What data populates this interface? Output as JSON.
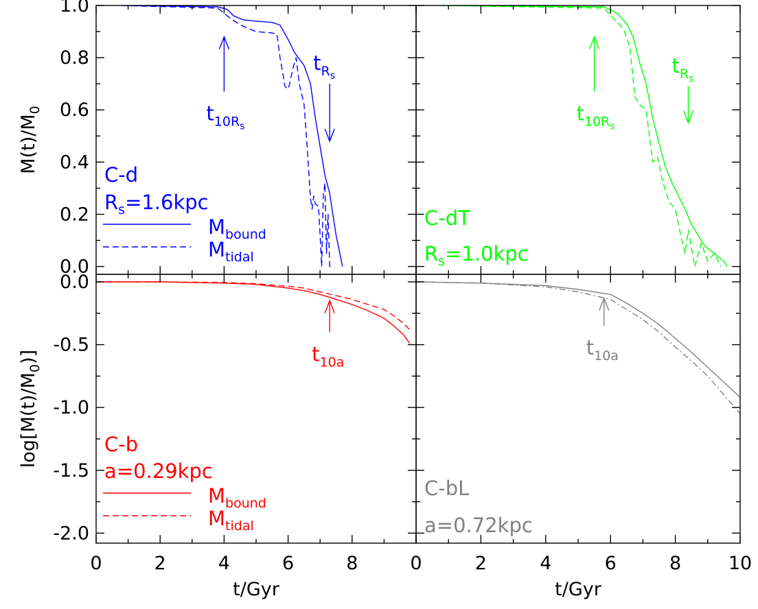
{
  "chart_data": [
    {
      "panel": "top-left",
      "type": "line",
      "color": "#0000ff",
      "label_main": "C-d",
      "label_param_base": "R",
      "label_param_sub": "s",
      "label_param_rest": "=1.6kpc",
      "legend": [
        {
          "base": "M",
          "sub": "bound",
          "style": "solid"
        },
        {
          "base": "M",
          "sub": "tidal",
          "style": "dashed"
        }
      ],
      "arrows": [
        {
          "name": "t-10Rs",
          "direction": "up",
          "x": 4.0,
          "y_from": 0.67,
          "y_to": 0.88,
          "base": "t",
          "sub": "10R",
          "subsub": "s"
        },
        {
          "name": "t-Rs",
          "direction": "down",
          "x": 7.3,
          "y_from": 0.7,
          "y_to": 0.48,
          "base": "t",
          "sub": "R",
          "subsub": "s"
        }
      ],
      "xlim": [
        0,
        10
      ],
      "ylim": [
        -0.03,
        1.0
      ],
      "yticks": [
        "0.0",
        "0.2",
        "0.4",
        "0.6",
        "0.8",
        "1.0"
      ],
      "ylabel": "M(t)/M",
      "ylabel_sub": "0",
      "series": [
        {
          "name": "M_bound",
          "style": "solid",
          "x": [
            0.8,
            3.8,
            4.1,
            4.3,
            4.6,
            5.0,
            5.5,
            5.75,
            6.0,
            6.2,
            6.5,
            6.7,
            6.85,
            7.0,
            7.15,
            7.3,
            7.4,
            7.5,
            7.6,
            7.7
          ],
          "y": [
            1.0,
            0.995,
            0.985,
            0.96,
            0.945,
            0.94,
            0.935,
            0.925,
            0.87,
            0.82,
            0.77,
            0.7,
            0.57,
            0.46,
            0.35,
            0.28,
            0.2,
            0.12,
            0.06,
            0.0
          ]
        },
        {
          "name": "M_tidal",
          "style": "dashed",
          "x": [
            0.8,
            3.8,
            4.2,
            4.45,
            4.6,
            5.0,
            5.5,
            5.65,
            5.75,
            5.85,
            5.9,
            6.0,
            6.05,
            6.15,
            6.25,
            6.35,
            6.5,
            6.6,
            6.7,
            6.75,
            6.8,
            6.85,
            6.95,
            7.0,
            7.05,
            7.1,
            7.15,
            7.2,
            7.25,
            7.3,
            7.4
          ],
          "y": [
            1.0,
            0.99,
            0.95,
            0.93,
            0.92,
            0.9,
            0.895,
            0.89,
            0.8,
            0.73,
            0.69,
            0.68,
            0.7,
            0.76,
            0.8,
            0.7,
            0.62,
            0.45,
            0.26,
            0.22,
            0.27,
            0.24,
            0.23,
            0.12,
            0.0,
            0.27,
            0.32,
            0.05,
            0.2,
            0.0,
            0.0
          ]
        }
      ]
    },
    {
      "panel": "top-right",
      "type": "line",
      "color": "#00ff00",
      "label_main": "C-dT",
      "label_param_base": "R",
      "label_param_sub": "s",
      "label_param_rest": "=1.0kpc",
      "legend": [],
      "arrows": [
        {
          "name": "t-10Rs",
          "direction": "up",
          "x": 5.5,
          "y_from": 0.67,
          "y_to": 0.88,
          "base": "t",
          "sub": "10R",
          "subsub": "s"
        },
        {
          "name": "t-Rs",
          "direction": "down",
          "x": 8.4,
          "y_from": 0.69,
          "y_to": 0.55,
          "base": "t",
          "sub": "R",
          "subsub": "s"
        }
      ],
      "xlim": [
        0,
        10
      ],
      "ylim": [
        -0.03,
        1.0
      ],
      "series": [
        {
          "name": "M_bound",
          "style": "solid",
          "x": [
            0.8,
            5.8,
            6.2,
            6.5,
            6.7,
            6.9,
            7.1,
            7.3,
            7.5,
            7.7,
            7.9,
            8.1,
            8.3,
            8.5,
            8.7,
            8.9,
            9.1,
            9.3,
            9.5,
            9.6
          ],
          "y": [
            1.0,
            0.995,
            0.97,
            0.93,
            0.88,
            0.78,
            0.7,
            0.57,
            0.47,
            0.38,
            0.32,
            0.27,
            0.22,
            0.16,
            0.12,
            0.08,
            0.06,
            0.04,
            0.02,
            0.0
          ]
        },
        {
          "name": "M_tidal",
          "style": "dashed",
          "x": [
            0.8,
            5.8,
            6.1,
            6.4,
            6.6,
            6.75,
            6.9,
            7.1,
            7.3,
            7.45,
            7.6,
            7.8,
            8.0,
            8.2,
            8.3,
            8.4,
            8.6,
            8.8,
            9.0,
            9.2,
            9.4
          ],
          "y": [
            1.0,
            0.99,
            0.95,
            0.91,
            0.84,
            0.65,
            0.62,
            0.6,
            0.4,
            0.42,
            0.33,
            0.25,
            0.22,
            0.1,
            0.05,
            0.14,
            0.0,
            0.09,
            0.02,
            0.05,
            0.0
          ]
        }
      ]
    },
    {
      "panel": "bottom-left",
      "type": "line",
      "color": "#ff0000",
      "label_main": "C-b",
      "label_param_base": "a",
      "label_param_sub": "",
      "label_param_rest": "=0.29kpc",
      "legend": [
        {
          "base": "M",
          "sub": "bound",
          "style": "solid"
        },
        {
          "base": "M",
          "sub": "tidal",
          "style": "dashed"
        }
      ],
      "arrows": [
        {
          "name": "t-10a",
          "direction": "up",
          "x": 7.3,
          "y_from": -0.4,
          "y_to": -0.15,
          "base": "t",
          "sub": "10a",
          "subsub": ""
        }
      ],
      "xlim": [
        0,
        10
      ],
      "ylim": [
        -2.08,
        0.06
      ],
      "xticks": [
        "0",
        "2",
        "4",
        "6",
        "8"
      ],
      "yticks": [
        "-2.0",
        "-1.5",
        "-1.0",
        "-0.5",
        "0.0"
      ],
      "ylabel": "log[M(t)/M",
      "ylabel_sub": "0",
      "ylabel_end": ")]",
      "xlabel": "t/Gyr",
      "series": [
        {
          "name": "M_bound",
          "style": "solid",
          "x": [
            0.0,
            2.0,
            4.0,
            5.0,
            6.0,
            6.5,
            7.0,
            7.5,
            8.0,
            8.5,
            9.0,
            9.3,
            9.6,
            9.8
          ],
          "y": [
            0.0,
            0.0,
            -0.01,
            -0.02,
            -0.05,
            -0.07,
            -0.1,
            -0.14,
            -0.18,
            -0.23,
            -0.29,
            -0.35,
            -0.42,
            -0.49
          ]
        },
        {
          "name": "M_tidal",
          "style": "dashed",
          "x": [
            0.0,
            2.0,
            4.0,
            5.0,
            6.0,
            6.5,
            7.0,
            7.5,
            8.0,
            8.5,
            9.0,
            9.3,
            9.6,
            9.8
          ],
          "y": [
            0.0,
            0.0,
            -0.005,
            -0.015,
            -0.035,
            -0.05,
            -0.08,
            -0.11,
            -0.14,
            -0.18,
            -0.22,
            -0.27,
            -0.33,
            -0.38
          ]
        }
      ]
    },
    {
      "panel": "bottom-right",
      "type": "line",
      "color": "#808080",
      "label_main": "C-bL",
      "label_param_base": "a",
      "label_param_sub": "",
      "label_param_rest": "=0.72kpc",
      "legend": [],
      "arrows": [
        {
          "name": "t-10a",
          "direction": "up",
          "x": 5.8,
          "y_from": -0.35,
          "y_to": -0.13,
          "base": "t",
          "sub": "10a",
          "subsub": ""
        }
      ],
      "xlim": [
        0,
        10
      ],
      "ylim": [
        -2.08,
        0.06
      ],
      "xticks": [
        "0",
        "2",
        "4",
        "6",
        "8",
        "10"
      ],
      "xlabel": "t/Gyr",
      "series": [
        {
          "name": "M_bound",
          "style": "solid",
          "x": [
            0.0,
            2.0,
            4.0,
            5.0,
            6.0,
            6.5,
            7.0,
            7.5,
            8.0,
            8.5,
            9.0,
            9.5,
            10.0
          ],
          "y": [
            0.0,
            -0.01,
            -0.03,
            -0.06,
            -0.1,
            -0.17,
            -0.25,
            -0.34,
            -0.45,
            -0.56,
            -0.68,
            -0.8,
            -0.92
          ]
        },
        {
          "name": "M_tidal",
          "style": "dash-dot",
          "x": [
            0.0,
            2.0,
            4.0,
            5.0,
            6.0,
            6.5,
            7.0,
            7.5,
            8.0,
            8.5,
            9.0,
            9.5,
            10.0
          ],
          "y": [
            0.0,
            -0.01,
            -0.04,
            -0.08,
            -0.14,
            -0.22,
            -0.3,
            -0.4,
            -0.52,
            -0.63,
            -0.75,
            -0.9,
            -1.05
          ]
        }
      ]
    }
  ]
}
